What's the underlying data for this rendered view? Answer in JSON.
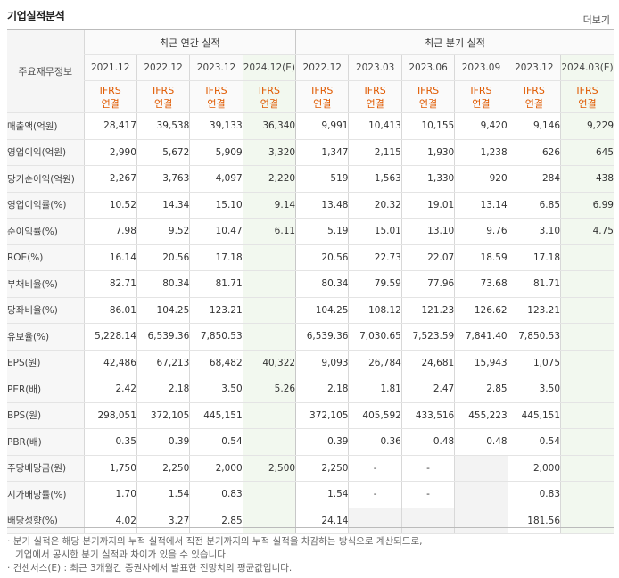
{
  "title": "기업실적분석",
  "more_label": "더보기",
  "header": {
    "row_header": "주요재무정보",
    "annual_group": "최근 연간 실적",
    "quarter_group": "최근 분기 실적",
    "periods": [
      "2021.12",
      "2022.12",
      "2023.12",
      "2024.12(E)",
      "2022.12",
      "2023.03",
      "2023.06",
      "2023.09",
      "2023.12",
      "2024.03(E)"
    ],
    "ifrs": "IFRS",
    "consol": "연결"
  },
  "rows": [
    {
      "label": "매출액(억원)",
      "values": [
        "28,417",
        "39,538",
        "39,133",
        "36,340",
        "9,991",
        "10,413",
        "10,155",
        "9,420",
        "9,146",
        "9,229"
      ]
    },
    {
      "label": "영업이익(억원)",
      "values": [
        "2,990",
        "5,672",
        "5,909",
        "3,320",
        "1,347",
        "2,115",
        "1,930",
        "1,238",
        "626",
        "645"
      ]
    },
    {
      "label": "당기순이익(억원)",
      "values": [
        "2,267",
        "3,763",
        "4,097",
        "2,220",
        "519",
        "1,563",
        "1,330",
        "920",
        "284",
        "438"
      ]
    },
    {
      "label": "영업이익률(%)",
      "values": [
        "10.52",
        "14.34",
        "15.10",
        "9.14",
        "13.48",
        "20.32",
        "19.01",
        "13.14",
        "6.85",
        "6.99"
      ]
    },
    {
      "label": "순이익률(%)",
      "values": [
        "7.98",
        "9.52",
        "10.47",
        "6.11",
        "5.19",
        "15.01",
        "13.10",
        "9.76",
        "3.10",
        "4.75"
      ]
    },
    {
      "label": "ROE(%)",
      "values": [
        "16.14",
        "20.56",
        "17.18",
        "",
        "20.56",
        "22.73",
        "22.07",
        "18.59",
        "17.18",
        ""
      ]
    },
    {
      "label": "부채비율(%)",
      "values": [
        "82.71",
        "80.34",
        "81.71",
        "",
        "80.34",
        "79.59",
        "77.96",
        "73.68",
        "81.71",
        ""
      ]
    },
    {
      "label": "당좌비율(%)",
      "values": [
        "86.01",
        "104.25",
        "123.21",
        "",
        "104.25",
        "108.12",
        "121.23",
        "126.62",
        "123.21",
        ""
      ]
    },
    {
      "label": "유보율(%)",
      "values": [
        "5,228.14",
        "6,539.36",
        "7,850.53",
        "",
        "6,539.36",
        "7,030.65",
        "7,523.59",
        "7,841.40",
        "7,850.53",
        ""
      ]
    },
    {
      "label": "EPS(원)",
      "values": [
        "42,486",
        "67,213",
        "68,482",
        "40,322",
        "9,093",
        "26,784",
        "24,681",
        "15,943",
        "1,075",
        ""
      ]
    },
    {
      "label": "PER(배)",
      "values": [
        "2.42",
        "2.18",
        "3.50",
        "5.26",
        "2.18",
        "1.81",
        "2.47",
        "2.85",
        "3.50",
        ""
      ]
    },
    {
      "label": "BPS(원)",
      "values": [
        "298,051",
        "372,105",
        "445,151",
        "",
        "372,105",
        "405,592",
        "433,516",
        "455,223",
        "445,151",
        ""
      ]
    },
    {
      "label": "PBR(배)",
      "values": [
        "0.35",
        "0.39",
        "0.54",
        "",
        "0.39",
        "0.36",
        "0.48",
        "0.48",
        "0.54",
        ""
      ]
    },
    {
      "label": "주당배당금(원)",
      "values": [
        "1,750",
        "2,250",
        "2,000",
        "2,500",
        "2,250",
        "-",
        "-",
        "",
        "2,000",
        ""
      ]
    },
    {
      "label": "시가배당률(%)",
      "values": [
        "1.70",
        "1.54",
        "0.83",
        "",
        "1.54",
        "-",
        "-",
        "",
        "0.83",
        ""
      ]
    },
    {
      "label": "배당성향(%)",
      "values": [
        "4.02",
        "3.27",
        "2.85",
        "",
        "24.14",
        "",
        "",
        "",
        "181.56",
        ""
      ]
    }
  ],
  "notes": [
    "분기 실적은 해당 분기까지의 누적 실적에서 직전 분기까지의 누적 실적을 차감하는 방식으로 계산되므로,",
    "기업에서 공시한 분기 실적과 차이가 있을 수 있습니다.",
    "컨센서스(E) : 최근 3개월간 증권사에서 발표한 전망치의 평균값입니다."
  ]
}
